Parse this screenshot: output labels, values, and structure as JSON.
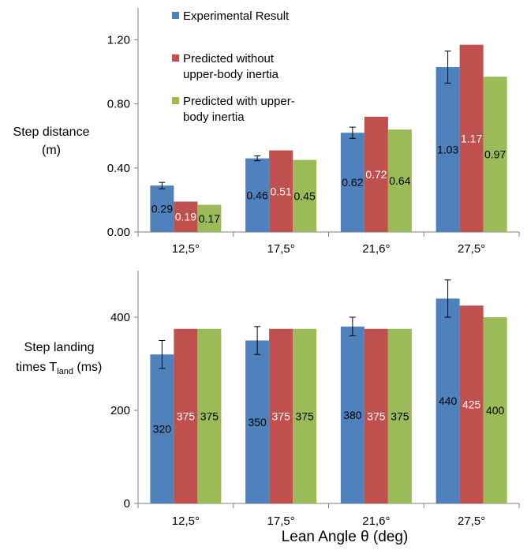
{
  "colors": {
    "experimental": "#4F81BD",
    "without": "#C0504D",
    "with": "#9BBB59",
    "axis": "#808080",
    "text": "#000000"
  },
  "legend": {
    "entries": [
      {
        "key": "experimental",
        "lines": [
          "Experimental Result"
        ]
      },
      {
        "key": "without",
        "lines": [
          "Predicted without",
          "upper-body inertia"
        ]
      },
      {
        "key": "with",
        "lines": [
          "Predicted with upper-",
          "body inertia"
        ]
      }
    ]
  },
  "x_axis_title": "Lean Angle θ (deg)",
  "chart_data": [
    {
      "type": "bar",
      "ylabel_lines": [
        "Step distance",
        "(m)"
      ],
      "categories": [
        "12,5°",
        "17,5°",
        "21,6°",
        "27,5°"
      ],
      "ylim": [
        0,
        1.4
      ],
      "yticks": [
        "0.00",
        "0.40",
        "0.80",
        "1.20"
      ],
      "ytick_values": [
        0,
        0.4,
        0.8,
        1.2
      ],
      "series": [
        {
          "key": "experimental",
          "name": "Experimental Result",
          "values": [
            0.29,
            0.46,
            0.62,
            1.03
          ],
          "labels": [
            "0.29",
            "0.46",
            "0.62",
            "1.03"
          ],
          "errors": [
            0.02,
            0.015,
            0.035,
            0.1
          ]
        },
        {
          "key": "without",
          "name": "Predicted without upper-body inertia",
          "values": [
            0.19,
            0.51,
            0.72,
            1.17
          ],
          "labels": [
            "0.19",
            "0.51",
            "0.72",
            "1.17"
          ]
        },
        {
          "key": "with",
          "name": "Predicted with upper-body inertia",
          "values": [
            0.17,
            0.45,
            0.64,
            0.97
          ],
          "labels": [
            "0.17",
            "0.45",
            "0.64",
            "0.97"
          ]
        }
      ]
    },
    {
      "type": "bar",
      "ylabel_lines": [
        "Step landing",
        "times T",
        "land",
        " (ms)"
      ],
      "categories": [
        "12,5°",
        "17,5°",
        "21,6°",
        "27,5°"
      ],
      "ylim": [
        0,
        500
      ],
      "yticks": [
        "0",
        "200",
        "400"
      ],
      "ytick_values": [
        0,
        200,
        400
      ],
      "series": [
        {
          "key": "experimental",
          "name": "Experimental Result",
          "values": [
            320,
            350,
            380,
            440
          ],
          "labels": [
            "320",
            "350",
            "380",
            "440"
          ],
          "errors": [
            30,
            30,
            20,
            40
          ]
        },
        {
          "key": "without",
          "name": "Predicted without upper-body inertia",
          "values": [
            375,
            375,
            375,
            425
          ],
          "labels": [
            "375",
            "375",
            "375",
            "425"
          ]
        },
        {
          "key": "with",
          "name": "Predicted with upper-body inertia",
          "values": [
            375,
            375,
            375,
            400
          ],
          "labels": [
            "375",
            "375",
            "375",
            "400"
          ]
        }
      ]
    }
  ]
}
